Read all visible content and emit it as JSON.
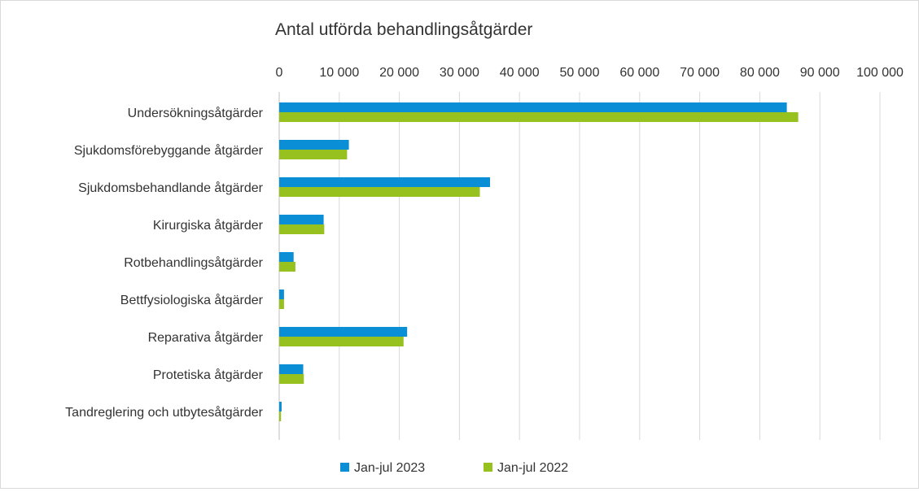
{
  "chart_data": {
    "type": "bar",
    "orientation": "horizontal",
    "title": "Antal utförda behandlingsåtgärder",
    "xlabel": "",
    "ylabel": "",
    "xlim": [
      0,
      100000
    ],
    "x_ticks": [
      {
        "value": 0,
        "label": "0"
      },
      {
        "value": 10000,
        "label": "10 000"
      },
      {
        "value": 20000,
        "label": "20 000"
      },
      {
        "value": 30000,
        "label": "30 000"
      },
      {
        "value": 40000,
        "label": "40 000"
      },
      {
        "value": 50000,
        "label": "50 000"
      },
      {
        "value": 60000,
        "label": "60 000"
      },
      {
        "value": 70000,
        "label": "70 000"
      },
      {
        "value": 80000,
        "label": "80 000"
      },
      {
        "value": 90000,
        "label": "90 000"
      },
      {
        "value": 100000,
        "label": "100 000"
      }
    ],
    "x_axis_position": "top",
    "grid": true,
    "legend_position": "bottom",
    "categories": [
      "Undersökningsåtgärder",
      "Sjukdomsförebyggande åtgärder",
      "Sjukdomsbehandlande åtgärder",
      "Kirurgiska åtgärder",
      "Rotbehandlingsåtgärder",
      "Bettfysiologiska åtgärder",
      "Reparativa åtgärder",
      "Protetiska åtgärder",
      "Tandreglering och utbytesåtgärder"
    ],
    "series": [
      {
        "name": "Jan-jul 2023",
        "color": "#0a8fd6",
        "values": [
          84500,
          11600,
          35100,
          7400,
          2400,
          800,
          21300,
          4000,
          400
        ]
      },
      {
        "name": "Jan-jul 2022",
        "color": "#97c11f",
        "values": [
          86400,
          11300,
          33400,
          7500,
          2700,
          800,
          20700,
          4100,
          300
        ]
      }
    ]
  }
}
